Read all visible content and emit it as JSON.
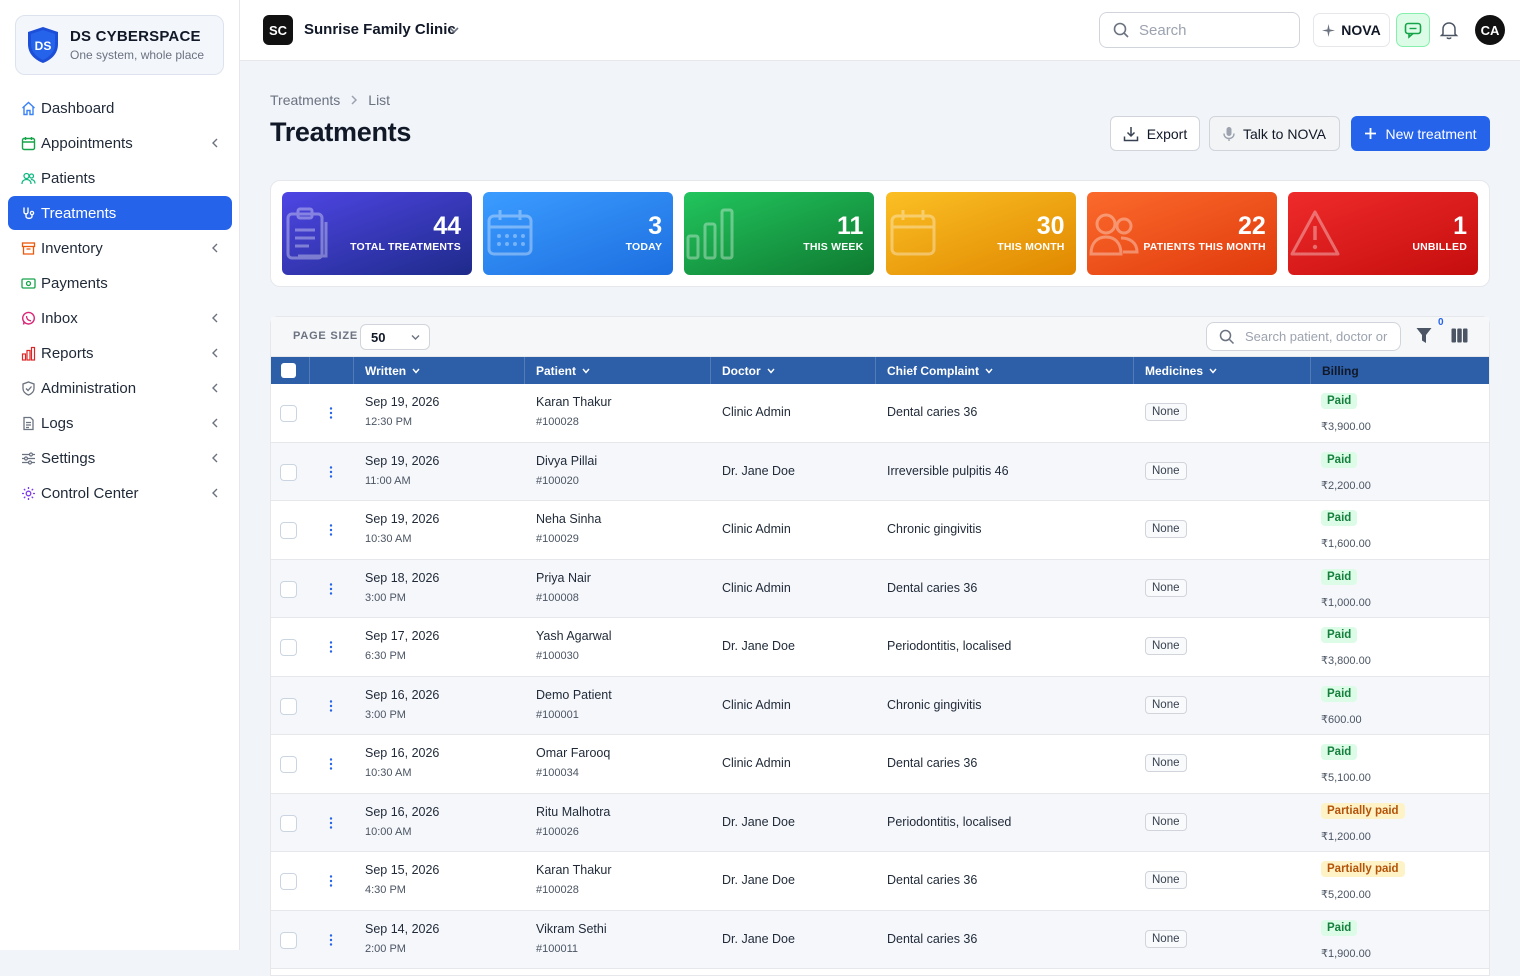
{
  "brand": {
    "name": "DS CYBERSPACE",
    "tagline": "One system, whole place"
  },
  "sidebar": {
    "items": [
      {
        "label": "Dashboard",
        "icon": "home-icon",
        "chevron": false,
        "active": false
      },
      {
        "label": "Appointments",
        "icon": "calendar-icon",
        "chevron": true,
        "active": false
      },
      {
        "label": "Patients",
        "icon": "users-icon",
        "chevron": false,
        "active": false
      },
      {
        "label": "Treatments",
        "icon": "stethoscope-icon",
        "chevron": false,
        "active": true
      },
      {
        "label": "Inventory",
        "icon": "box-icon",
        "chevron": true,
        "active": false
      },
      {
        "label": "Payments",
        "icon": "money-icon",
        "chevron": false,
        "active": false
      },
      {
        "label": "Inbox",
        "icon": "whatsapp-icon",
        "chevron": true,
        "active": false
      },
      {
        "label": "Reports",
        "icon": "bar-chart-icon",
        "chevron": true,
        "active": false
      },
      {
        "label": "Administration",
        "icon": "shield-icon",
        "chevron": true,
        "active": false
      },
      {
        "label": "Logs",
        "icon": "file-icon",
        "chevron": true,
        "active": false
      },
      {
        "label": "Settings",
        "icon": "sliders-icon",
        "chevron": true,
        "active": false
      },
      {
        "label": "Control Center",
        "icon": "gear-icon",
        "chevron": true,
        "active": false
      }
    ]
  },
  "topbar": {
    "clinic_badge": "SC",
    "clinic_name": "Sunrise Family Clinic",
    "search_placeholder": "Search",
    "nova_label": "NOVA",
    "avatar_initials": "CA"
  },
  "page": {
    "breadcrumb": [
      "Treatments",
      "List"
    ],
    "title": "Treatments",
    "export_label": "Export",
    "talk_label": "Talk to NOVA",
    "new_label": "New treatment"
  },
  "stats": [
    {
      "value": "44",
      "label": "Total treatments",
      "color_from": "#4f46e5",
      "color_to": "#1e2a8a",
      "icon": "clipboard-icon"
    },
    {
      "value": "3",
      "label": "Today",
      "color_from": "#3b9cff",
      "color_to": "#1d6fe0",
      "icon": "calendar-icon"
    },
    {
      "value": "11",
      "label": "This week",
      "color_from": "#22c55e",
      "color_to": "#0f7a30",
      "icon": "bar-chart-icon"
    },
    {
      "value": "30",
      "label": "This month",
      "color_from": "#fbbf24",
      "color_to": "#e08800",
      "icon": "calendar-blank-icon"
    },
    {
      "value": "22",
      "label": "Patients this month",
      "color_from": "#fb6a2c",
      "color_to": "#e03a0c",
      "icon": "users-icon"
    },
    {
      "value": "1",
      "label": "Unbilled",
      "color_from": "#ef2b2b",
      "color_to": "#c50d0d",
      "icon": "alert-triangle-icon"
    }
  ],
  "table": {
    "page_size_label": "PAGE SIZE",
    "page_size": "50",
    "search_placeholder": "Search patient, doctor or",
    "filter_count": "0",
    "columns": [
      "Written",
      "Patient",
      "Doctor",
      "Chief Complaint",
      "Medicines",
      "Billing"
    ],
    "rows": [
      {
        "date": "Sep 19, 2026",
        "time": "12:30 PM",
        "patient": "Karan Thakur",
        "pid": "#100028",
        "doctor": "Clinic Admin",
        "complaint": "Dental caries 36",
        "medicines": "None",
        "status": "Paid",
        "amount": "₹3,900.00"
      },
      {
        "date": "Sep 19, 2026",
        "time": "11:00 AM",
        "patient": "Divya Pillai",
        "pid": "#100020",
        "doctor": "Dr. Jane Doe",
        "complaint": "Irreversible pulpitis 46",
        "medicines": "None",
        "status": "Paid",
        "amount": "₹2,200.00"
      },
      {
        "date": "Sep 19, 2026",
        "time": "10:30 AM",
        "patient": "Neha Sinha",
        "pid": "#100029",
        "doctor": "Clinic Admin",
        "complaint": "Chronic gingivitis",
        "medicines": "None",
        "status": "Paid",
        "amount": "₹1,600.00"
      },
      {
        "date": "Sep 18, 2026",
        "time": "3:00 PM",
        "patient": "Priya Nair",
        "pid": "#100008",
        "doctor": "Clinic Admin",
        "complaint": "Dental caries 36",
        "medicines": "None",
        "status": "Paid",
        "amount": "₹1,000.00"
      },
      {
        "date": "Sep 17, 2026",
        "time": "6:30 PM",
        "patient": "Yash Agarwal",
        "pid": "#100030",
        "doctor": "Dr. Jane Doe",
        "complaint": "Periodontitis, localised",
        "medicines": "None",
        "status": "Paid",
        "amount": "₹3,800.00"
      },
      {
        "date": "Sep 16, 2026",
        "time": "3:00 PM",
        "patient": "Demo Patient",
        "pid": "#100001",
        "doctor": "Clinic Admin",
        "complaint": "Chronic gingivitis",
        "medicines": "None",
        "status": "Paid",
        "amount": "₹600.00"
      },
      {
        "date": "Sep 16, 2026",
        "time": "10:30 AM",
        "patient": "Omar Farooq",
        "pid": "#100034",
        "doctor": "Clinic Admin",
        "complaint": "Dental caries 36",
        "medicines": "None",
        "status": "Paid",
        "amount": "₹5,100.00"
      },
      {
        "date": "Sep 16, 2026",
        "time": "10:00 AM",
        "patient": "Ritu Malhotra",
        "pid": "#100026",
        "doctor": "Dr. Jane Doe",
        "complaint": "Periodontitis, localised",
        "medicines": "None",
        "status": "Partially paid",
        "amount": "₹1,200.00"
      },
      {
        "date": "Sep 15, 2026",
        "time": "4:30 PM",
        "patient": "Karan Thakur",
        "pid": "#100028",
        "doctor": "Dr. Jane Doe",
        "complaint": "Dental caries 36",
        "medicines": "None",
        "status": "Partially paid",
        "amount": "₹5,200.00"
      },
      {
        "date": "Sep 14, 2026",
        "time": "2:00 PM",
        "patient": "Vikram Sethi",
        "pid": "#100011",
        "doctor": "Dr. Jane Doe",
        "complaint": "Dental caries 36",
        "medicines": "None",
        "status": "Paid",
        "amount": "₹1,900.00"
      }
    ]
  }
}
